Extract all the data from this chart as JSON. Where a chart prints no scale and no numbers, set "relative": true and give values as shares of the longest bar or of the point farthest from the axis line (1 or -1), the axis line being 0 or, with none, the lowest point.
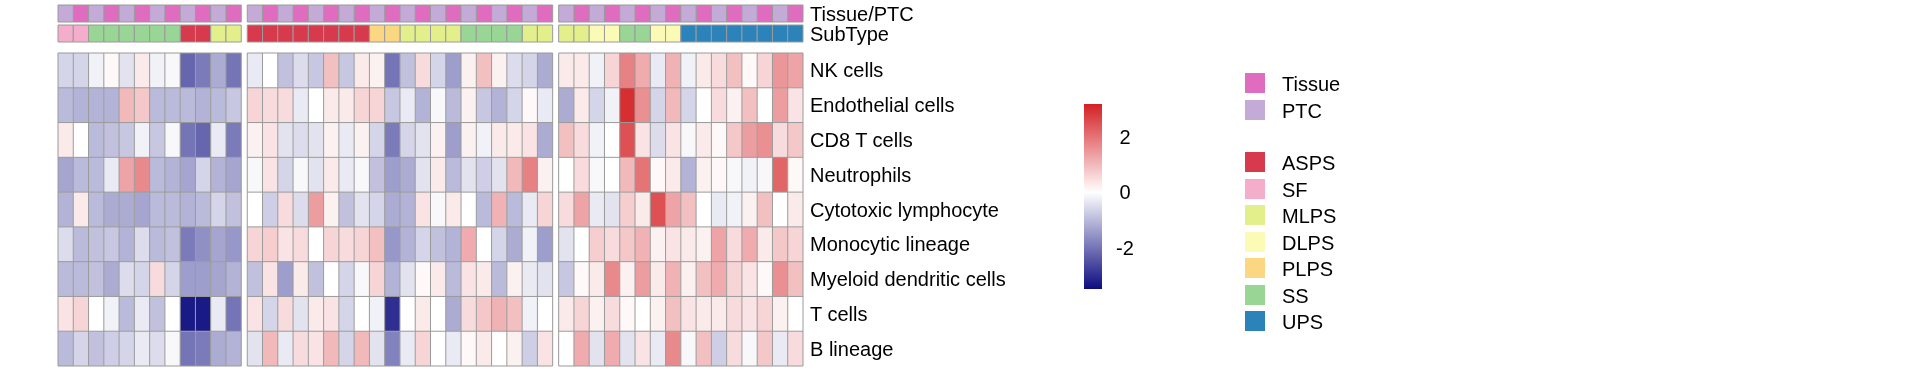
{
  "chart_data": [
    {
      "type": "bar",
      "stacked": true,
      "relative": true,
      "legend": "right",
      "y2_categories": [
        "Tissue/PTC"
      ],
      "categories": [
        null,
        null,
        null,
        null,
        null,
        null,
        null,
        null,
        null,
        null,
        null,
        null,
        null,
        null,
        null,
        null,
        null,
        null,
        null,
        null,
        null,
        null,
        null,
        null,
        null,
        null,
        null,
        null,
        null,
        null,
        null,
        null,
        null,
        null,
        null,
        null,
        null,
        null,
        null,
        null,
        null,
        null,
        null,
        null,
        null,
        null,
        null,
        null
      ],
      "series": [
        {
          "name": "Tissue",
          "color": "#e06cc0",
          "values": [
            null,
            1,
            null,
            1,
            null,
            1,
            null,
            1,
            null,
            1,
            null,
            1,
            null,
            1,
            null,
            1,
            null,
            1,
            null,
            1,
            null,
            1,
            null,
            1,
            null,
            1,
            null,
            1,
            null,
            1,
            null,
            1,
            null,
            1,
            null,
            1,
            null,
            1,
            null,
            1,
            null,
            1,
            null,
            1,
            null,
            1,
            null,
            1
          ]
        },
        {
          "name": "PTC",
          "color": "#c3aad7",
          "values": [
            1,
            null,
            1,
            null,
            1,
            null,
            1,
            null,
            1,
            null,
            1,
            null,
            1,
            null,
            1,
            null,
            1,
            null,
            1,
            null,
            1,
            null,
            1,
            null,
            1,
            null,
            1,
            null,
            1,
            null,
            1,
            null,
            1,
            null,
            1,
            null,
            1,
            null,
            1,
            null,
            1,
            null,
            1,
            null,
            1,
            null,
            1,
            null
          ]
        }
      ]
    },
    {
      "type": "bar",
      "stacked": true,
      "relative": true,
      "legend": "right",
      "y2_categories": [
        "SubType"
      ],
      "categories": [
        null,
        null,
        null,
        null,
        null,
        null,
        null,
        null,
        null,
        null,
        null,
        null,
        null,
        null,
        null,
        null,
        null,
        null,
        null,
        null,
        null,
        null,
        null,
        null,
        null,
        null,
        null,
        null,
        null,
        null,
        null,
        null,
        null,
        null,
        null,
        null,
        null,
        null,
        null,
        null,
        null,
        null,
        null,
        null,
        null,
        null,
        null,
        null
      ],
      "series": [
        {
          "name": "ASPS",
          "color": "#d63a4c",
          "values": [
            null,
            null,
            null,
            null,
            null,
            null,
            null,
            null,
            1,
            1,
            null,
            null,
            1,
            1,
            1,
            1,
            1,
            1,
            1,
            1,
            null,
            null,
            null,
            null,
            null,
            null,
            null,
            null,
            null,
            null,
            null,
            null,
            null,
            null,
            null,
            null,
            null,
            null,
            null,
            null,
            null,
            null,
            null,
            null,
            null,
            null,
            null,
            null
          ]
        },
        {
          "name": "SF",
          "color": "#f4adcb",
          "values": [
            1,
            1,
            null,
            null,
            null,
            null,
            null,
            null,
            null,
            null,
            null,
            null,
            null,
            null,
            null,
            null,
            null,
            null,
            null,
            null,
            null,
            null,
            null,
            null,
            null,
            null,
            null,
            null,
            null,
            null,
            null,
            null,
            null,
            null,
            null,
            null,
            null,
            null,
            null,
            null,
            null,
            null,
            null,
            null,
            null,
            null,
            null,
            null
          ]
        },
        {
          "name": "MLPS",
          "color": "#e2ef8a",
          "values": [
            null,
            null,
            null,
            null,
            null,
            null,
            null,
            null,
            null,
            null,
            1,
            1,
            null,
            null,
            null,
            null,
            null,
            null,
            null,
            null,
            null,
            null,
            1,
            1,
            1,
            1,
            null,
            null,
            null,
            null,
            1,
            1,
            1,
            1,
            null,
            null,
            null,
            null,
            null,
            null,
            null,
            null,
            null,
            null,
            null,
            null,
            null,
            null
          ]
        },
        {
          "name": "DLPS",
          "color": "#fbfbb6",
          "values": [
            null,
            null,
            null,
            null,
            null,
            null,
            null,
            null,
            null,
            null,
            null,
            null,
            null,
            null,
            null,
            null,
            null,
            null,
            null,
            null,
            null,
            null,
            null,
            null,
            null,
            null,
            null,
            null,
            null,
            null,
            null,
            null,
            null,
            null,
            1,
            1,
            null,
            null,
            1,
            1,
            null,
            null,
            null,
            null,
            null,
            null,
            null,
            null
          ]
        },
        {
          "name": "PLPS",
          "color": "#fbd782",
          "values": [
            null,
            null,
            null,
            null,
            null,
            null,
            null,
            null,
            null,
            null,
            null,
            null,
            null,
            null,
            null,
            null,
            null,
            null,
            null,
            null,
            1,
            1,
            null,
            null,
            null,
            null,
            null,
            null,
            null,
            null,
            null,
            null,
            null,
            null,
            null,
            null,
            null,
            null,
            null,
            null,
            null,
            null,
            null,
            null,
            null,
            null,
            null,
            null
          ]
        },
        {
          "name": "SS",
          "color": "#99d594",
          "values": [
            null,
            null,
            1,
            1,
            1,
            1,
            1,
            1,
            null,
            null,
            null,
            null,
            null,
            null,
            null,
            null,
            null,
            null,
            null,
            null,
            null,
            null,
            null,
            null,
            null,
            null,
            1,
            1,
            1,
            1,
            null,
            null,
            null,
            null,
            null,
            null,
            1,
            1,
            null,
            null,
            null,
            null,
            null,
            null,
            null,
            null,
            null,
            null
          ]
        },
        {
          "name": "UPS",
          "color": "#2b83ba",
          "values": [
            null,
            null,
            null,
            null,
            null,
            null,
            null,
            null,
            null,
            null,
            null,
            null,
            null,
            null,
            null,
            null,
            null,
            null,
            null,
            null,
            null,
            null,
            null,
            null,
            null,
            null,
            null,
            null,
            null,
            null,
            null,
            null,
            null,
            null,
            null,
            null,
            null,
            null,
            null,
            null,
            1,
            1,
            1,
            1,
            1,
            1,
            1,
            1
          ]
        }
      ]
    },
    {
      "type": "heatmap",
      "grid": true,
      "clim": [
        -3.5,
        3.2
      ],
      "cticks": [
        -2,
        0,
        2
      ],
      "categories": [
        null,
        null,
        null,
        null,
        null,
        null,
        null,
        null,
        null,
        null,
        null,
        null,
        null,
        null,
        null,
        null,
        null,
        null,
        null,
        null,
        null,
        null,
        null,
        null,
        null,
        null,
        null,
        null,
        null,
        null,
        null,
        null,
        null,
        null,
        null,
        null,
        null,
        null,
        null,
        null,
        null,
        null,
        null,
        null,
        null,
        null,
        null,
        null
      ],
      "y_categories": [
        "NK cells",
        "Endothelial cells",
        "CD8 T cells",
        "Neutrophils",
        "Cytotoxic lymphocyte",
        "Monocytic lineage",
        "Myeloid dendritic cells",
        "T cells",
        "B lineage"
      ],
      "cells": [
        [
          -0.6,
          -0.6,
          -0.2,
          0.1,
          -0.4,
          0.3,
          -0.2,
          -0.1,
          -2.2,
          -1.9,
          -1.2,
          -2.0,
          -0.3,
          0,
          -0.9,
          -0.5,
          -0.8,
          0.9,
          -0.8,
          0.3,
          0.2,
          -2.0,
          -0.9,
          0.5,
          -0.6,
          -1.4,
          0.2,
          0.9,
          0.2,
          -0.5,
          -0.6,
          -1.2,
          0.3,
          0.3,
          -0.2,
          0.6,
          1.8,
          1.2,
          -0.3,
          1.1,
          -0.2,
          0.3,
          0.5,
          0.9,
          0.1,
          0.6,
          1.5,
          1.3
        ],
        [
          -1.0,
          -1.1,
          -1.1,
          -1.1,
          1.0,
          0.8,
          -1.0,
          -1.0,
          -1.0,
          -1.1,
          -1.0,
          -0.8,
          0.6,
          0.5,
          0.5,
          -0.3,
          0,
          0.3,
          0.3,
          0.6,
          0.6,
          -0.8,
          -0.3,
          -1.1,
          -0.1,
          -1.0,
          0.2,
          -0.8,
          -1.1,
          -0.6,
          0.1,
          -0.3,
          -1.2,
          0.3,
          -0.6,
          -0.2,
          3.0,
          1.6,
          -0.6,
          1.0,
          -0.6,
          0,
          0.5,
          0.2,
          0.9,
          0,
          1.4,
          0.4
        ],
        [
          0.3,
          0,
          -1.0,
          -0.9,
          -0.8,
          -0.2,
          -0.8,
          -0.1,
          -2.0,
          -2.2,
          -0.3,
          -1.9,
          0.2,
          0.4,
          -0.4,
          -0.5,
          -0.4,
          0.2,
          -0.3,
          0.2,
          -0.6,
          -1.9,
          -0.6,
          -0.4,
          0.2,
          -1.4,
          0.2,
          -0.2,
          0.3,
          0.3,
          0.4,
          -1.2,
          0.9,
          0.5,
          -0.2,
          0,
          2.5,
          0.4,
          -0.5,
          0.4,
          -0.1,
          0.3,
          0.1,
          0.8,
          1.4,
          1.6,
          0.5,
          0.8
        ],
        [
          -1.3,
          -1.0,
          -1.0,
          -0.3,
          1.3,
          1.7,
          -1.0,
          -1.1,
          -1.3,
          -0.6,
          -1.1,
          -1.3,
          -0.1,
          0.4,
          -0.6,
          -0.1,
          -0.4,
          0.3,
          -0.3,
          -0.1,
          -0.9,
          -1.4,
          -1.2,
          -0.4,
          0.3,
          -1.0,
          -0.4,
          -0.7,
          -0.4,
          1.0,
          1.8,
          0.2,
          0,
          0.5,
          -0.1,
          0,
          1.0,
          2.0,
          0.1,
          0.3,
          -1.1,
          0.2,
          0.1,
          -0.1,
          -0.2,
          -0.1,
          2.2,
          0.1
        ],
        [
          -1.1,
          0.3,
          -1.0,
          -1.2,
          -1.2,
          -1.3,
          -1.0,
          -1.0,
          -1.1,
          -1.0,
          -0.6,
          -0.9,
          0,
          -0.7,
          0.5,
          -0.5,
          1.4,
          0.2,
          -0.9,
          -0.4,
          -0.6,
          -1.2,
          -1.1,
          0.4,
          -0.1,
          0.3,
          0,
          -1.0,
          1.1,
          -1.0,
          -0.3,
          0.6,
          0.5,
          1.3,
          -0.3,
          -0.4,
          0.7,
          0.3,
          2.5,
          1.3,
          0.9,
          0,
          -0.3,
          -0.2,
          0.2,
          0.9,
          0,
          0.3
        ],
        [
          -0.5,
          -1.0,
          -0.9,
          -0.8,
          -1.1,
          -0.5,
          -1.0,
          -0.9,
          -1.9,
          -1.6,
          -1.3,
          -1.5,
          0.6,
          0.7,
          0.4,
          0.5,
          0,
          0.6,
          0.5,
          0.6,
          0.9,
          -1.5,
          -1.1,
          -0.6,
          -0.9,
          -1.1,
          1.2,
          0,
          -0.6,
          -1.2,
          -0.2,
          -1.4,
          -0.4,
          0,
          0.7,
          0.5,
          0.8,
          1.1,
          0.2,
          0.4,
          0.3,
          0.2,
          1.3,
          0.5,
          1.2,
          0.3,
          0.8,
          0.6
        ],
        [
          -1.0,
          -1.0,
          -0.9,
          -1.2,
          -0.5,
          -0.6,
          0.5,
          -0.6,
          -1.4,
          -1.4,
          -1.3,
          -1.1,
          -0.9,
          0.4,
          -1.4,
          0.3,
          -0.9,
          0,
          -0.6,
          -0.1,
          0.6,
          -1.1,
          -0.4,
          0.1,
          0.3,
          -1.0,
          0.4,
          0.3,
          -1.0,
          0.2,
          -0.3,
          -0.4,
          -0.8,
          0.1,
          0.3,
          1.7,
          0.2,
          1.4,
          0.3,
          1.1,
          0.2,
          0.9,
          1.2,
          0.6,
          0.4,
          0.1,
          1.6,
          0.9
        ],
        [
          0.4,
          0.6,
          0,
          -0.2,
          -1.0,
          -0.3,
          -0.9,
          0,
          -3.3,
          -3.3,
          -0.3,
          -2.0,
          0.4,
          -0.6,
          0.5,
          -0.4,
          0.3,
          0.4,
          -0.6,
          0,
          -0.2,
          -3.0,
          0,
          0.3,
          0,
          -1.2,
          0.5,
          0.8,
          1.1,
          0.9,
          -0.2,
          0,
          0.3,
          0.6,
          0.2,
          0.5,
          0.1,
          0,
          0.2,
          0.9,
          0.4,
          0.3,
          0.3,
          0.5,
          0.4,
          0.6,
          0.2,
          0
        ],
        [
          -1.0,
          -0.6,
          -0.9,
          -0.7,
          -0.6,
          -0.3,
          -0.5,
          -0.1,
          -2.0,
          -1.9,
          -1.2,
          -1.1,
          -0.4,
          1.0,
          -0.3,
          0.5,
          0.4,
          1.0,
          -0.6,
          1.0,
          -0.4,
          -1.8,
          -0.3,
          0.6,
          0,
          -0.3,
          0.1,
          0.3,
          0,
          0.2,
          -0.7,
          0.4,
          0,
          1.2,
          -0.4,
          1.2,
          -0.4,
          0.4,
          -0.3,
          1.7,
          -0.1,
          0.9,
          -0.7,
          0.5,
          -0.1,
          0.8,
          -0.3,
          0.5
        ]
      ]
    }
  ]
}
